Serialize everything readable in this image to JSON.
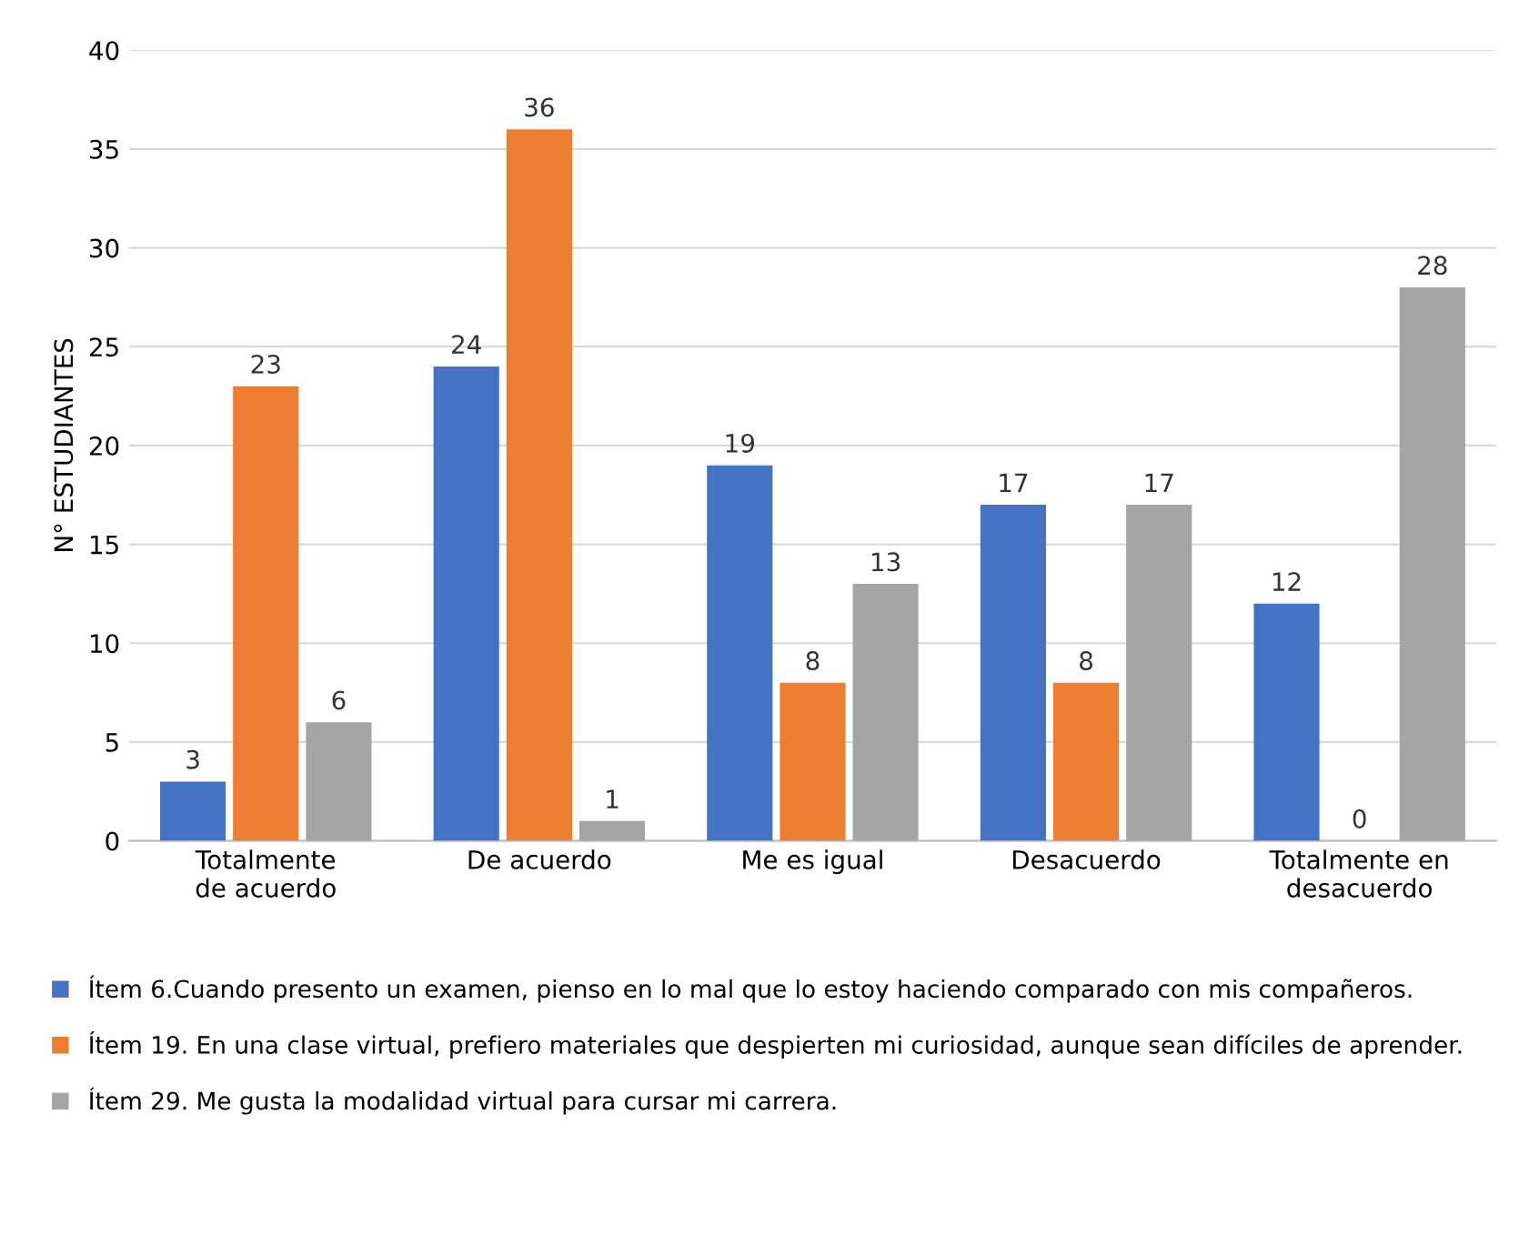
{
  "chart_data": {
    "type": "bar",
    "ylabel": "N° ESTUDIANTES",
    "categories": [
      "Totalmente de acuerdo",
      "De acuerdo",
      "Me es igual",
      "Desacuerdo",
      "Totalmente en desacuerdo"
    ],
    "series": [
      {
        "name": "Ítem 6.Cuando presento un examen, pienso en lo mal que lo estoy haciendo comparado con mis compañeros.",
        "color": "#4472c4",
        "values": [
          3,
          24,
          19,
          17,
          12
        ]
      },
      {
        "name": "Ítem 19. En una clase virtual, prefiero materiales que despierten mi curiosidad, aunque sean difíciles de aprender.",
        "color": "#ed7d31",
        "values": [
          23,
          36,
          8,
          8,
          0
        ]
      },
      {
        "name": "Ítem 29. Me gusta la modalidad virtual para cursar mi carrera.",
        "color": "#a5a5a5",
        "values": [
          6,
          1,
          13,
          17,
          28
        ]
      }
    ],
    "ylim": [
      0,
      40
    ],
    "yticks": [
      0,
      5,
      10,
      15,
      20,
      25,
      30,
      35,
      40
    ],
    "grid": "y",
    "legend": "bottom",
    "data_labels": true
  }
}
